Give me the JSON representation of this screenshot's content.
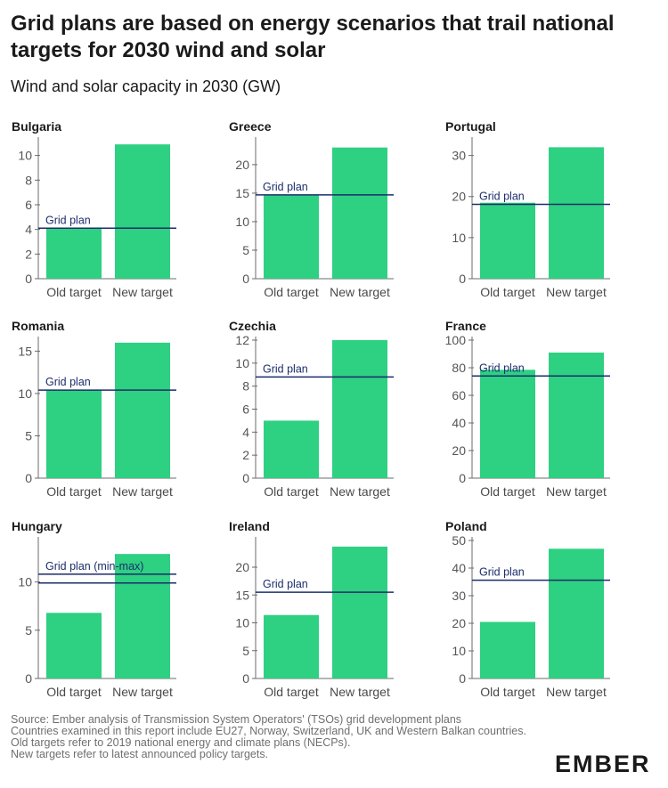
{
  "header": {
    "title": "Grid plans are based on energy scenarios that trail national targets for 2030 wind and solar",
    "subtitle": "Wind and solar capacity in 2030 (GW)"
  },
  "footer": {
    "source": "Source: Ember analysis of Transmission System Operators' (TSOs) grid development plans",
    "note1": "Countries examined in this report include EU27, Norway, Switzerland, UK and Western Balkan countries. Old targets refer to 2019 national energy and climate plans (NECPs).",
    "note2": "New targets refer to latest announced policy targets.",
    "logo": "EMBER"
  },
  "colors": {
    "bar": "#2ed082",
    "line": "#1c2d6b",
    "axis": "#6b6b6b"
  },
  "chart_data": [
    {
      "type": "bar",
      "title": "Bulgaria",
      "categories": [
        "Old target",
        "New target"
      ],
      "values": [
        4.1,
        10.9
      ],
      "yticks": [
        0,
        2,
        4,
        6,
        8,
        10
      ],
      "ylim": [
        0,
        11.2
      ],
      "reference_lines": [
        4.1
      ],
      "reference_label": "Grid plan"
    },
    {
      "type": "bar",
      "title": "Greece",
      "categories": [
        "Old target",
        "New target"
      ],
      "values": [
        14.7,
        23.0
      ],
      "yticks": [
        0,
        5,
        10,
        15,
        20
      ],
      "ylim": [
        0,
        24.2
      ],
      "reference_lines": [
        14.7
      ],
      "reference_label": "Grid plan"
    },
    {
      "type": "bar",
      "title": "Portugal",
      "categories": [
        "Old target",
        "New target"
      ],
      "values": [
        18.5,
        32.0
      ],
      "yticks": [
        0,
        10,
        20,
        30
      ],
      "ylim": [
        0,
        33.6
      ],
      "reference_lines": [
        18.1
      ],
      "reference_label": "Grid plan"
    },
    {
      "type": "bar",
      "title": "Romania",
      "categories": [
        "Old target",
        "New target"
      ],
      "values": [
        10.4,
        16.0
      ],
      "yticks": [
        0,
        5,
        10,
        15
      ],
      "ylim": [
        0,
        16.3
      ],
      "reference_lines": [
        10.4
      ],
      "reference_label": "Grid plan"
    },
    {
      "type": "bar",
      "title": "Czechia",
      "categories": [
        "Old target",
        "New target"
      ],
      "values": [
        5.0,
        12.0
      ],
      "yticks": [
        0,
        2,
        4,
        6,
        8,
        10,
        12
      ],
      "ylim": [
        0,
        12.0
      ],
      "reference_lines": [
        8.8
      ],
      "reference_label": "Grid plan"
    },
    {
      "type": "bar",
      "title": "France",
      "categories": [
        "Old target",
        "New target"
      ],
      "values": [
        78.5,
        91.0
      ],
      "yticks": [
        0,
        20,
        40,
        60,
        80,
        100
      ],
      "ylim": [
        0,
        100
      ],
      "reference_lines": [
        74.0
      ],
      "reference_label": "Grid plan"
    },
    {
      "type": "bar",
      "title": "Hungary",
      "categories": [
        "Old target",
        "New target"
      ],
      "values": [
        6.8,
        12.9
      ],
      "yticks": [
        0,
        5,
        10
      ],
      "ylim": [
        0,
        14.3
      ],
      "reference_lines": [
        9.9,
        10.8
      ],
      "reference_label": "Grid plan (min-max)"
    },
    {
      "type": "bar",
      "title": "Ireland",
      "categories": [
        "Old target",
        "New target"
      ],
      "values": [
        11.4,
        23.7
      ],
      "yticks": [
        0,
        5,
        10,
        15,
        20
      ],
      "ylim": [
        0,
        24.8
      ],
      "reference_lines": [
        15.5
      ],
      "reference_label": "Grid plan"
    },
    {
      "type": "bar",
      "title": "Poland",
      "categories": [
        "Old target",
        "New target"
      ],
      "values": [
        20.5,
        47.0
      ],
      "yticks": [
        0,
        10,
        20,
        30,
        40,
        50
      ],
      "ylim": [
        0,
        50.0
      ],
      "reference_lines": [
        35.6
      ],
      "reference_label": "Grid plan"
    }
  ]
}
